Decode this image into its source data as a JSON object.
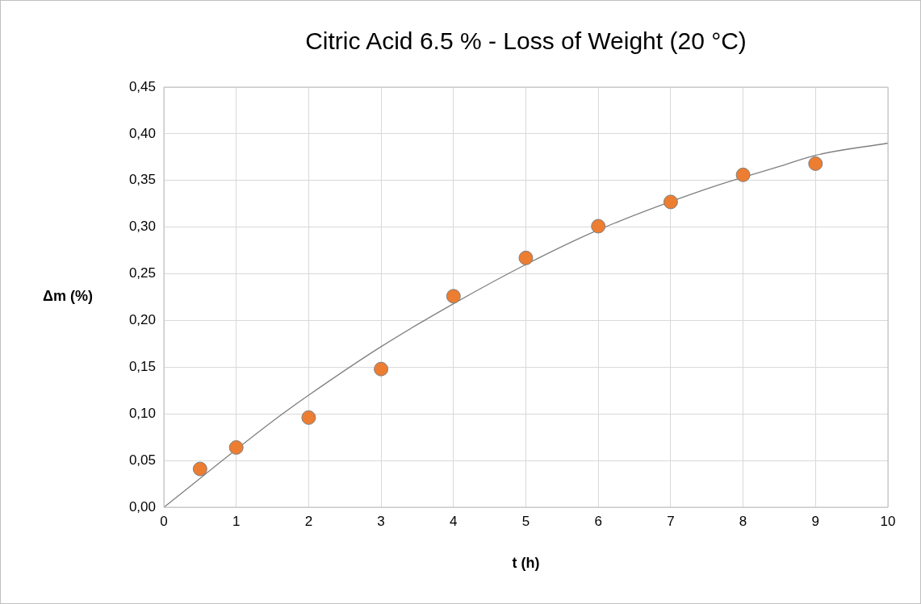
{
  "chart_data": {
    "type": "scatter",
    "title": "Citric Acid 6.5 % - Loss of Weight (20 °C)",
    "xlabel": "t (h)",
    "ylabel": "Δm (%)",
    "series": [
      {
        "marker": "circle",
        "color": "#ed7d31",
        "x": [
          0.5,
          1,
          2,
          3,
          4,
          5,
          6,
          7,
          8,
          9
        ],
        "values": [
          0.041,
          0.064,
          0.096,
          0.148,
          0.226,
          0.267,
          0.301,
          0.327,
          0.356,
          0.368
        ]
      },
      {
        "type": "line",
        "color": "#7f7f7f",
        "x": [
          0,
          1.5,
          2,
          3,
          4,
          5,
          6,
          7.5,
          8.5,
          9,
          10
        ],
        "values": [
          0,
          0.092,
          0.12,
          0.172,
          0.218,
          0.26,
          0.297,
          0.341,
          0.365,
          0.377,
          0.39
        ]
      }
    ],
    "xlim": [
      0,
      10
    ],
    "xticks": [
      0,
      1,
      2,
      3,
      4,
      5,
      6,
      7,
      8,
      9,
      10
    ],
    "ylim": [
      0,
      0.45
    ],
    "yticks": [
      {
        "value": 0,
        "label": "0,00"
      },
      {
        "value": 0.05,
        "label": "0,05"
      },
      {
        "value": 0.1,
        "label": "0,10"
      },
      {
        "value": 0.15,
        "label": "0,15"
      },
      {
        "value": 0.2,
        "label": "0,20"
      },
      {
        "value": 0.25,
        "label": "0,25"
      },
      {
        "value": 0.3,
        "label": "0,30"
      },
      {
        "value": 0.35,
        "label": "0,35"
      },
      {
        "value": 0.4,
        "label": "0,40"
      },
      {
        "value": 0.45,
        "label": "0,45"
      }
    ],
    "grid": true,
    "legend": false
  }
}
